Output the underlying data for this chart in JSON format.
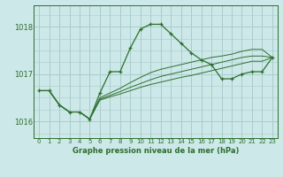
{
  "bg_color": "#cce8e8",
  "grid_color": "#aacccc",
  "line_color": "#2d6e2d",
  "title": "Graphe pression niveau de la mer (hPa)",
  "ylim": [
    1015.65,
    1018.45
  ],
  "yticks": [
    1016,
    1017,
    1018
  ],
  "xlim": [
    -0.5,
    23.5
  ],
  "xticks": [
    0,
    1,
    2,
    3,
    4,
    5,
    6,
    7,
    8,
    9,
    10,
    11,
    12,
    13,
    14,
    15,
    16,
    17,
    18,
    19,
    20,
    21,
    22,
    23
  ],
  "main_series": [
    1016.65,
    1016.65,
    1016.35,
    1016.2,
    1016.2,
    1016.05,
    1016.6,
    1017.05,
    1017.05,
    1017.55,
    1017.95,
    1018.05,
    1018.05,
    1017.85,
    1017.65,
    1017.45,
    1017.3,
    1017.2,
    1016.9,
    1016.9,
    1017.0,
    1017.05,
    1017.05,
    1017.35
  ],
  "fan_series": [
    [
      1016.65,
      1016.65,
      1016.35,
      1016.2,
      1016.2,
      1016.05,
      1016.45,
      1016.52,
      1016.58,
      1016.65,
      1016.72,
      1016.78,
      1016.83,
      1016.88,
      1016.93,
      1016.97,
      1017.02,
      1017.07,
      1017.12,
      1017.17,
      1017.22,
      1017.27,
      1017.27,
      1017.35
    ],
    [
      1016.65,
      1016.65,
      1016.35,
      1016.2,
      1016.2,
      1016.05,
      1016.47,
      1016.55,
      1016.63,
      1016.72,
      1016.8,
      1016.88,
      1016.95,
      1017.0,
      1017.05,
      1017.1,
      1017.15,
      1017.2,
      1017.25,
      1017.3,
      1017.35,
      1017.38,
      1017.38,
      1017.35
    ],
    [
      1016.65,
      1016.65,
      1016.35,
      1016.2,
      1016.2,
      1016.05,
      1016.5,
      1016.6,
      1016.7,
      1016.82,
      1016.93,
      1017.03,
      1017.1,
      1017.15,
      1017.2,
      1017.25,
      1017.3,
      1017.35,
      1017.38,
      1017.42,
      1017.48,
      1017.52,
      1017.52,
      1017.35
    ]
  ]
}
